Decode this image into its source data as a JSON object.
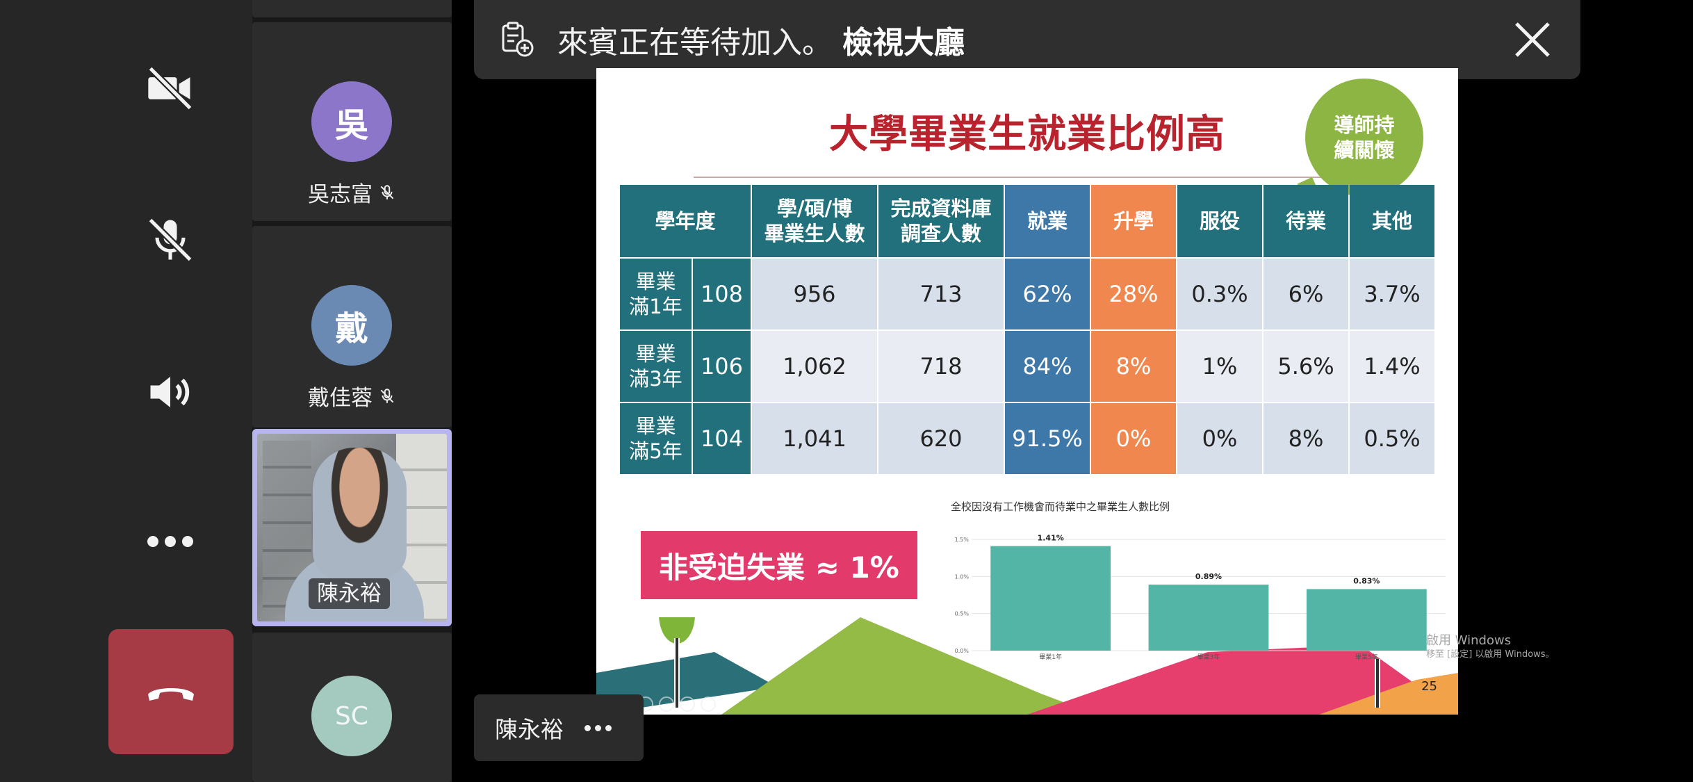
{
  "participants": [
    {
      "name": "吳志富",
      "initial": "吳",
      "muted": true,
      "color": "#8b76c9"
    },
    {
      "name": "戴佳蓉",
      "initial": "戴",
      "muted": true,
      "color": "#6b8ab3"
    },
    {
      "name": "陳永裕",
      "video": true
    },
    {
      "initial": "SC",
      "color": "#a4c9bf"
    }
  ],
  "banner": {
    "text": "來賓正在等待加入。",
    "link": "檢視大廳"
  },
  "slide": {
    "title": "大學畢業生就業比例高",
    "bubble_line1": "導師持",
    "bubble_line2": "續關懷",
    "table": {
      "headers": [
        "學年度",
        "學/碩/博",
        "畢業生人數",
        "完成資料庫",
        "調查人數",
        "就業",
        "升學",
        "服役",
        "待業",
        "其他"
      ],
      "rows": [
        {
          "label1": "畢業",
          "label2": "滿1年",
          "year": "108",
          "grads": "956",
          "surveyed": "713",
          "employed": "62%",
          "further": "28%",
          "military": "0.3%",
          "waiting": "6%",
          "other": "3.7%"
        },
        {
          "label1": "畢業",
          "label2": "滿3年",
          "year": "106",
          "grads": "1,062",
          "surveyed": "718",
          "employed": "84%",
          "further": "8%",
          "military": "1%",
          "waiting": "5.6%",
          "other": "1.4%"
        },
        {
          "label1": "畢業",
          "label2": "滿5年",
          "year": "104",
          "grads": "1,041",
          "surveyed": "620",
          "employed": "91.5%",
          "further": "0%",
          "military": "0%",
          "waiting": "8%",
          "other": "0.5%"
        }
      ]
    },
    "non_forced": "非受迫失業 ≈ 1%",
    "page_number": "25"
  },
  "chart_data": {
    "type": "bar",
    "title": "全校因沒有工作機會而待業中之畢業生人數比例",
    "categories": [
      "畢業1年",
      "畢業3年",
      "畢業5年"
    ],
    "values": [
      1.41,
      0.89,
      0.83
    ],
    "value_labels": [
      "1.41%",
      "0.89%",
      "0.83%"
    ],
    "yticks": [
      "0.0%",
      "0.5%",
      "1.0%",
      "1.5%"
    ],
    "ylim": [
      0,
      1.5
    ],
    "color": "#52b5a5"
  },
  "watermark": {
    "line1": "啟用 Windows",
    "line2": "移至 [設定] 以啟用 Windows。"
  },
  "presenter": {
    "name": "陳永裕"
  },
  "colors": {
    "hangup": "#a63b45",
    "table_teal": "#21707b",
    "employed_blue": "#3e78a9",
    "further_orange": "#f0874e",
    "title_red": "#b8232d",
    "pink": "#e23a6a",
    "green": "#8db544"
  }
}
